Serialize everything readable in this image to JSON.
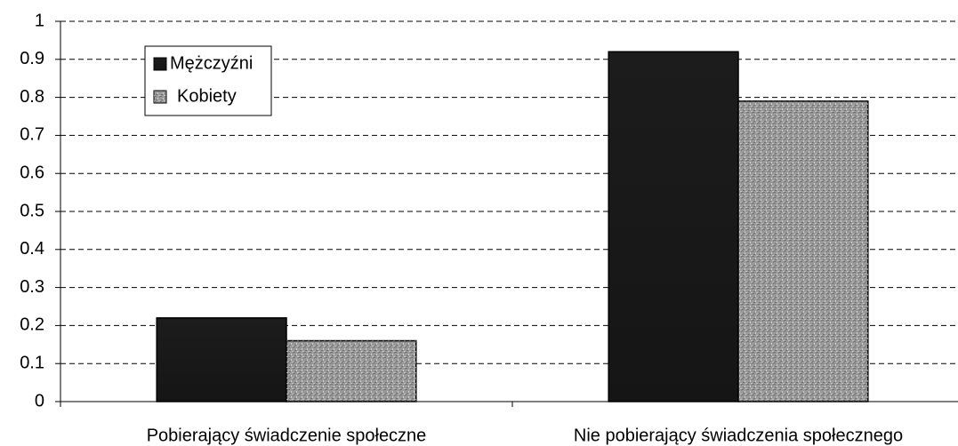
{
  "chart_data": {
    "type": "bar",
    "categories": [
      "Pobierający świadczenie społeczne",
      "Nie pobierający świadczenia społecznego"
    ],
    "series": [
      {
        "name": "Mężczyźni",
        "color": "#1c1c1c",
        "values": [
          0.22,
          0.92
        ]
      },
      {
        "name": "Kobiety",
        "color": "#9a9a9a",
        "values": [
          0.16,
          0.79
        ]
      }
    ],
    "ylim": [
      0,
      1
    ],
    "yticks": [
      0,
      0.1,
      0.2,
      0.3,
      0.4,
      0.5,
      0.6,
      0.7,
      0.8,
      0.9,
      1
    ],
    "grid": true,
    "legend": "upper left"
  }
}
